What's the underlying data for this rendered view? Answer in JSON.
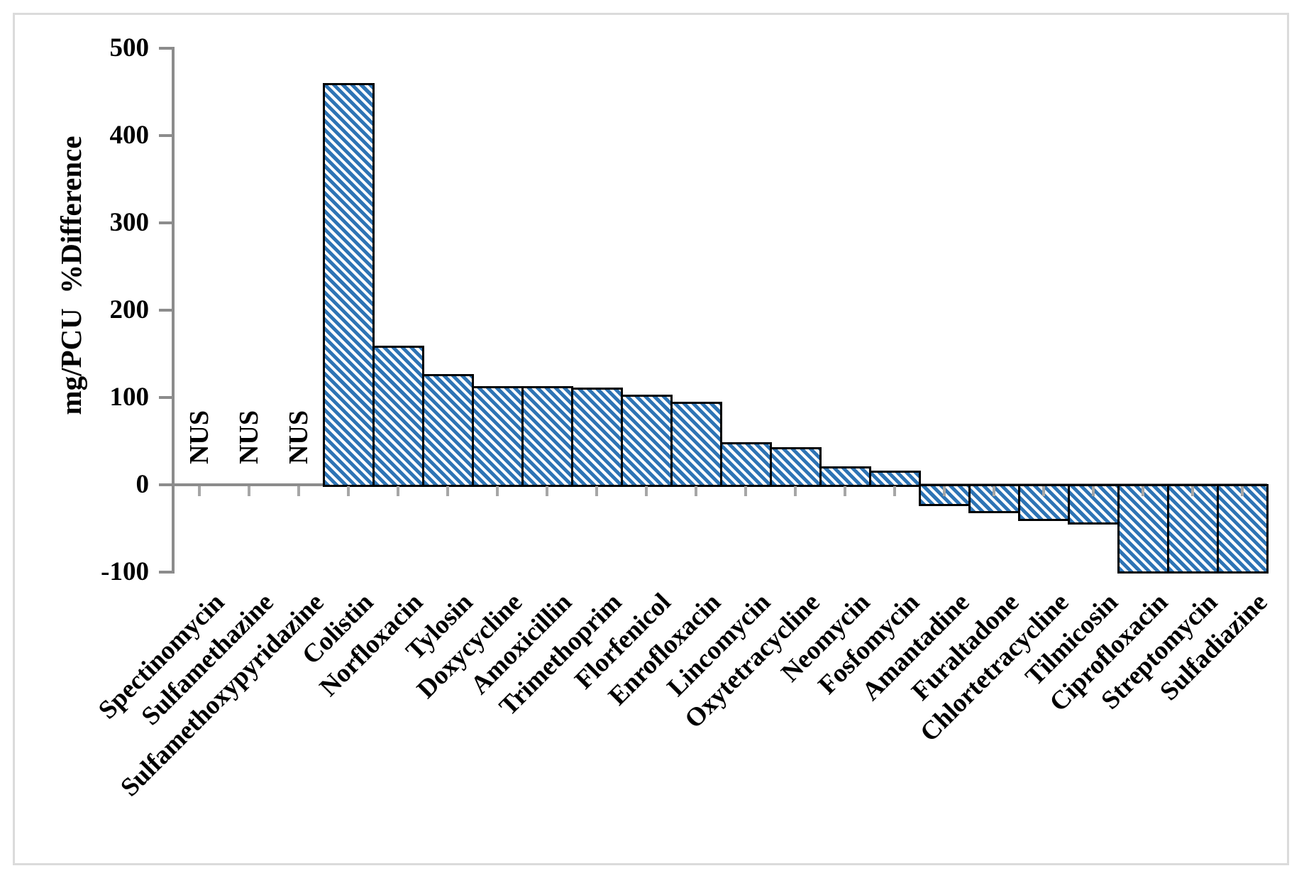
{
  "figure": {
    "background": "#ffffff",
    "frame_border_color": "#dbdbdb"
  },
  "chart_data": {
    "type": "bar",
    "title": "",
    "xlabel": "",
    "ylabel": "mg/PCU  %Difference",
    "ylim": [
      -100,
      500
    ],
    "yticks": [
      500,
      400,
      300,
      200,
      100,
      0,
      -100
    ],
    "grid": false,
    "legend": "none",
    "no_data_label": "NUS",
    "no_data_categories": [
      "Spectinomycin",
      "Sulfamethazine",
      "Sulfamethoxypyridazine"
    ],
    "bar_fill_style": "diagonal-stripes-down",
    "bar_stripe_color": "#2E74B5",
    "bar_stripe_bg": "#ffffff",
    "bar_border_color": "#000000",
    "axis_color": "#8c8c8c",
    "tick_color": "#a6a6a6",
    "categories": [
      "Spectinomycin",
      "Sulfamethazine",
      "Sulfamethoxypyridazine",
      "Colistin",
      "Norfloxacin",
      "Tylosin",
      "Doxycycline",
      "Amoxicillin",
      "Trimethoprim",
      "Florfenicol",
      "Enrofloxacin",
      "Lincomycin",
      "Oxytetracycline",
      "Neomycin",
      "Fosfomycin",
      "Amantadine",
      "Furaltadone",
      "Chlortetracycline",
      "Tilmicosin",
      "Ciprofloxacin",
      "Streptomycin",
      "Sulfadiazine"
    ],
    "values": [
      null,
      null,
      null,
      460,
      159,
      127,
      113,
      113,
      111,
      103,
      95,
      49,
      43,
      21,
      16,
      -23,
      -31,
      -40,
      -44,
      -100,
      -100,
      -100
    ]
  }
}
